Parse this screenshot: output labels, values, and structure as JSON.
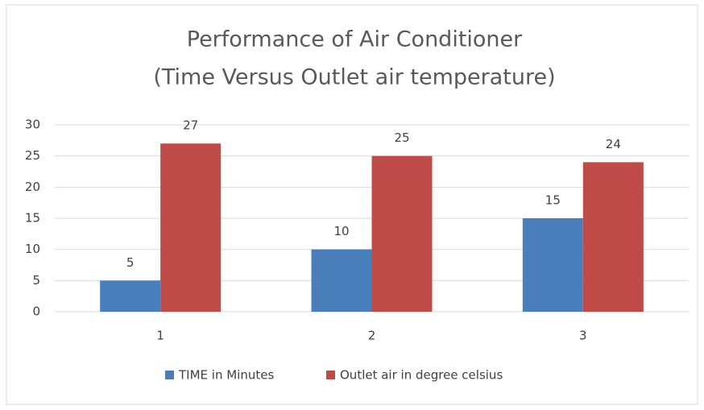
{
  "chart_data": {
    "type": "bar",
    "title": [
      "Performance of Air Conditioner",
      "(Time Versus Outlet air temperature)"
    ],
    "categories": [
      "1",
      "2",
      "3"
    ],
    "series": [
      {
        "name": "TIME in Minutes",
        "color": "#4a7ebb",
        "values": [
          5,
          10,
          15
        ]
      },
      {
        "name": "Outlet air in degree celsius",
        "color": "#be4b48",
        "values": [
          27,
          25,
          24
        ]
      }
    ],
    "ylim": [
      0,
      30
    ],
    "yticks": [
      0,
      5,
      10,
      15,
      20,
      25,
      30
    ],
    "grid": true,
    "legend": "bottom"
  }
}
